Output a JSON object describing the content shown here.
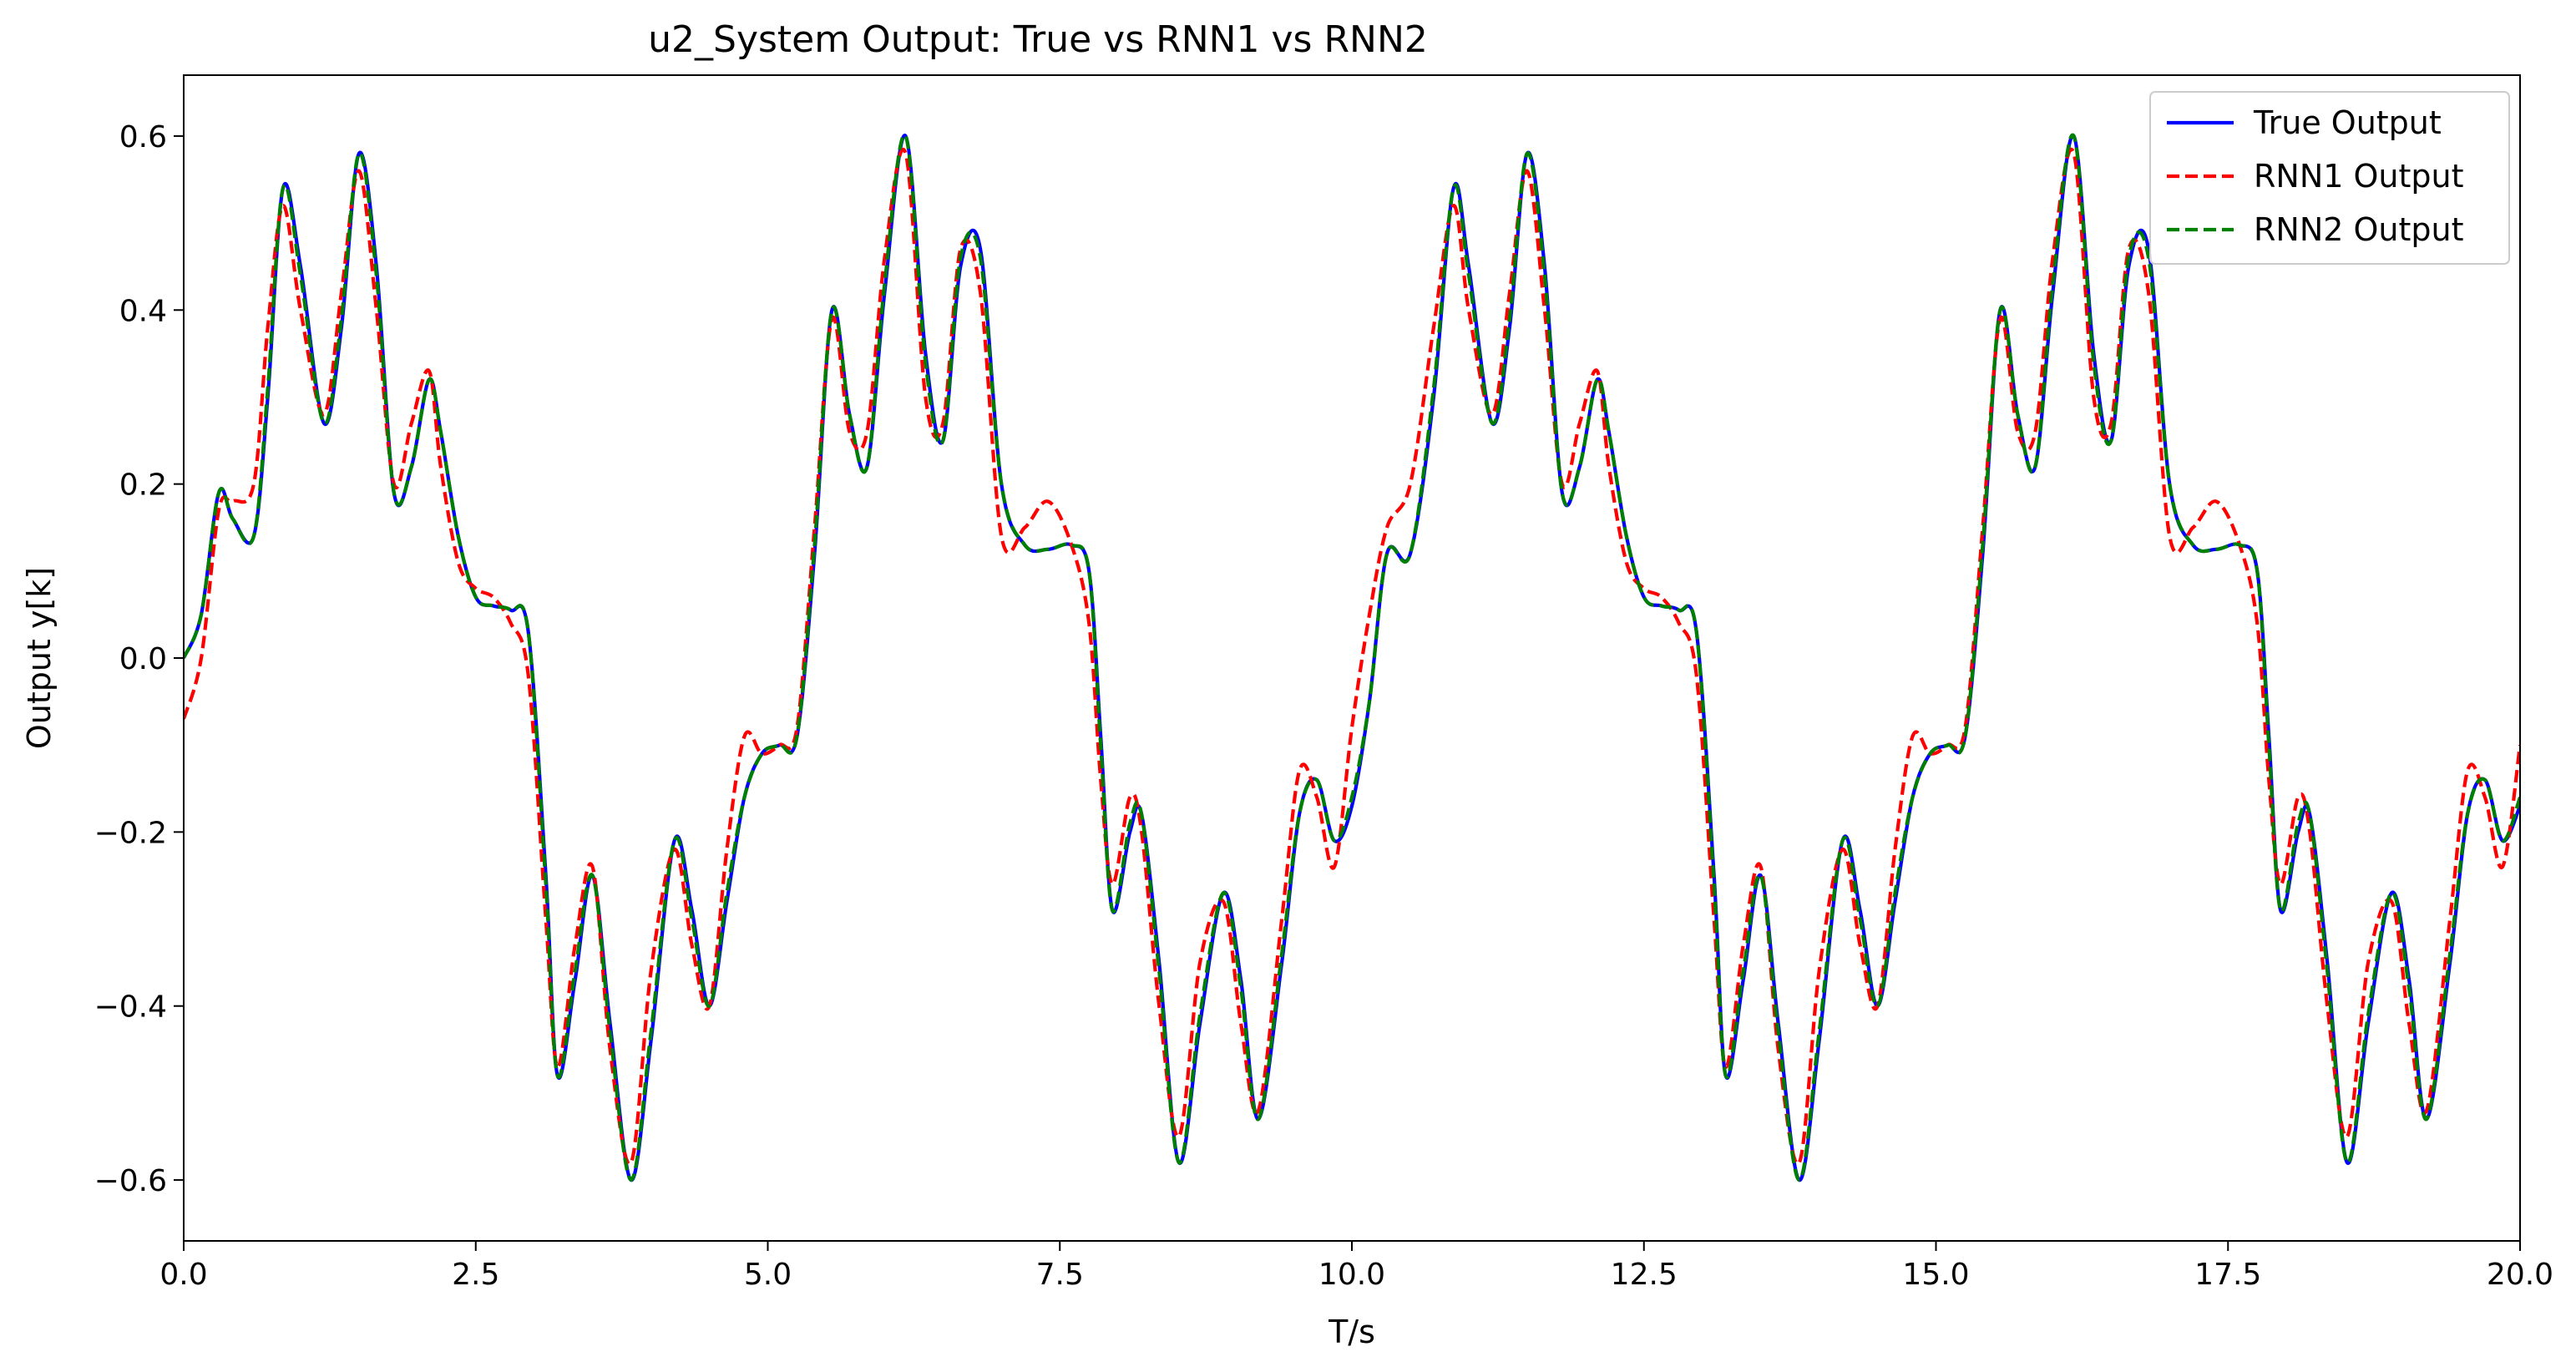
{
  "chart_data": {
    "type": "line",
    "title": "u2_System Output: True vs RNN1 vs RNN2",
    "xlabel": "T/s",
    "ylabel": "Output y[k]",
    "xlim": [
      0,
      20
    ],
    "ylim": [
      -0.67,
      0.67
    ],
    "xticks": [
      0,
      2.5,
      5,
      7.5,
      10,
      12.5,
      15,
      17.5,
      20
    ],
    "xtick_labels": [
      "0.0",
      "2.5",
      "5.0",
      "7.5",
      "10.0",
      "12.5",
      "15.0",
      "17.5",
      "20.0"
    ],
    "yticks": [
      -0.6,
      -0.4,
      -0.2,
      0.0,
      0.2,
      0.4,
      0.6
    ],
    "ytick_labels": [
      "−0.6",
      "−0.4",
      "−0.2",
      "0.0",
      "0.2",
      "0.4",
      "0.6"
    ],
    "grid": false,
    "legend_position": "top-right",
    "x": [
      0.0,
      0.15,
      0.3,
      0.42,
      0.6,
      0.72,
      0.85,
      1.0,
      1.2,
      1.35,
      1.5,
      1.65,
      1.8,
      1.95,
      2.1,
      2.2,
      2.35,
      2.5,
      2.65,
      2.8,
      2.95,
      3.1,
      3.2,
      3.35,
      3.5,
      3.65,
      3.83,
      4.0,
      4.2,
      4.35,
      4.5,
      4.65,
      4.8,
      4.95,
      5.1,
      5.25,
      5.4,
      5.55,
      5.7,
      5.85,
      6.0,
      6.18,
      6.35,
      6.5,
      6.65,
      6.82,
      7.0,
      7.2,
      7.4,
      7.6,
      7.75,
      7.85,
      7.95,
      8.1,
      8.2,
      8.35,
      8.52,
      8.7,
      8.9,
      9.05,
      9.2,
      9.4,
      9.55,
      9.7,
      9.85,
      10.0,
      10.15,
      10.3,
      10.5,
      10.7,
      10.87,
      11.0,
      11.2,
      11.35,
      11.5,
      11.65,
      11.8,
      11.95,
      12.1,
      12.2,
      12.35,
      12.5,
      12.65,
      12.8,
      12.95,
      13.1,
      13.2,
      13.35,
      13.5,
      13.65,
      13.83,
      14.0,
      14.2,
      14.35,
      14.5,
      14.65,
      14.8,
      14.95,
      15.1,
      15.25,
      15.4,
      15.55,
      15.7,
      15.85,
      16.0,
      16.18,
      16.35,
      16.5,
      16.65,
      16.82,
      17.0,
      17.2,
      17.4,
      17.6,
      17.75,
      17.85,
      17.95,
      18.1,
      18.2,
      18.35,
      18.52,
      18.7,
      18.9,
      19.05,
      19.2,
      19.4,
      19.55,
      19.7,
      19.85,
      20.0
    ],
    "series": [
      {
        "name": "True Output",
        "color": "#0000ff",
        "dash": "solid",
        "values": [
          0.0,
          0.05,
          0.19,
          0.16,
          0.14,
          0.3,
          0.54,
          0.45,
          0.27,
          0.38,
          0.58,
          0.45,
          0.19,
          0.22,
          0.32,
          0.26,
          0.14,
          0.07,
          0.06,
          0.055,
          0.03,
          -0.25,
          -0.48,
          -0.37,
          -0.25,
          -0.42,
          -0.6,
          -0.44,
          -0.21,
          -0.29,
          -0.4,
          -0.28,
          -0.16,
          -0.11,
          -0.1,
          -0.09,
          0.12,
          0.4,
          0.28,
          0.22,
          0.42,
          0.6,
          0.35,
          0.25,
          0.45,
          0.47,
          0.2,
          0.13,
          0.125,
          0.13,
          0.1,
          -0.09,
          -0.29,
          -0.2,
          -0.18,
          -0.35,
          -0.58,
          -0.42,
          -0.27,
          -0.37,
          -0.53,
          -0.35,
          -0.18,
          -0.14,
          -0.21,
          -0.17,
          -0.05,
          0.12,
          0.12,
          0.3,
          0.54,
          0.45,
          0.27,
          0.38,
          0.58,
          0.45,
          0.19,
          0.22,
          0.32,
          0.26,
          0.14,
          0.07,
          0.06,
          0.055,
          0.03,
          -0.25,
          -0.48,
          -0.37,
          -0.25,
          -0.42,
          -0.6,
          -0.44,
          -0.21,
          -0.29,
          -0.4,
          -0.28,
          -0.16,
          -0.11,
          -0.1,
          -0.09,
          0.12,
          0.4,
          0.28,
          0.22,
          0.42,
          0.6,
          0.35,
          0.25,
          0.45,
          0.47,
          0.2,
          0.13,
          0.125,
          0.13,
          0.1,
          -0.09,
          -0.29,
          -0.2,
          -0.18,
          -0.35,
          -0.58,
          -0.42,
          -0.27,
          -0.37,
          -0.53,
          -0.35,
          -0.18,
          -0.14,
          -0.21,
          -0.17
        ]
      },
      {
        "name": "RNN1 Output",
        "color": "#ff0000",
        "dash": "dashed",
        "values": [
          -0.07,
          0.0,
          0.17,
          0.18,
          0.2,
          0.38,
          0.52,
          0.4,
          0.28,
          0.42,
          0.56,
          0.4,
          0.2,
          0.27,
          0.33,
          0.22,
          0.11,
          0.08,
          0.07,
          0.04,
          -0.02,
          -0.3,
          -0.47,
          -0.33,
          -0.24,
          -0.45,
          -0.58,
          -0.36,
          -0.22,
          -0.33,
          -0.4,
          -0.22,
          -0.09,
          -0.11,
          -0.1,
          -0.08,
          0.15,
          0.39,
          0.26,
          0.26,
          0.46,
          0.58,
          0.3,
          0.27,
          0.47,
          0.42,
          0.14,
          0.15,
          0.18,
          0.13,
          0.04,
          -0.14,
          -0.26,
          -0.16,
          -0.2,
          -0.4,
          -0.55,
          -0.35,
          -0.28,
          -0.42,
          -0.52,
          -0.3,
          -0.13,
          -0.16,
          -0.24,
          -0.08,
          0.05,
          0.15,
          0.2,
          0.38,
          0.52,
          0.4,
          0.28,
          0.42,
          0.56,
          0.4,
          0.2,
          0.27,
          0.33,
          0.22,
          0.11,
          0.08,
          0.07,
          0.04,
          -0.02,
          -0.3,
          -0.47,
          -0.33,
          -0.24,
          -0.45,
          -0.58,
          -0.36,
          -0.22,
          -0.33,
          -0.4,
          -0.22,
          -0.09,
          -0.11,
          -0.1,
          -0.08,
          0.15,
          0.39,
          0.26,
          0.26,
          0.46,
          0.58,
          0.3,
          0.27,
          0.47,
          0.42,
          0.14,
          0.15,
          0.18,
          0.13,
          0.04,
          -0.14,
          -0.26,
          -0.16,
          -0.2,
          -0.4,
          -0.55,
          -0.35,
          -0.28,
          -0.42,
          -0.52,
          -0.3,
          -0.13,
          -0.16,
          -0.24,
          -0.1
        ]
      },
      {
        "name": "RNN2 Output",
        "color": "#008000",
        "dash": "dashed",
        "values": [
          0.0,
          0.05,
          0.19,
          0.16,
          0.14,
          0.31,
          0.54,
          0.44,
          0.27,
          0.39,
          0.58,
          0.44,
          0.19,
          0.22,
          0.32,
          0.26,
          0.14,
          0.07,
          0.06,
          0.055,
          0.03,
          -0.26,
          -0.48,
          -0.36,
          -0.25,
          -0.43,
          -0.6,
          -0.43,
          -0.21,
          -0.3,
          -0.4,
          -0.27,
          -0.16,
          -0.11,
          -0.1,
          -0.09,
          0.13,
          0.4,
          0.28,
          0.22,
          0.43,
          0.6,
          0.34,
          0.25,
          0.46,
          0.46,
          0.2,
          0.13,
          0.125,
          0.13,
          0.1,
          -0.1,
          -0.29,
          -0.19,
          -0.18,
          -0.36,
          -0.58,
          -0.41,
          -0.27,
          -0.38,
          -0.53,
          -0.34,
          -0.18,
          -0.14,
          -0.21,
          -0.16,
          -0.05,
          0.12,
          0.12,
          0.31,
          0.54,
          0.44,
          0.27,
          0.39,
          0.58,
          0.44,
          0.19,
          0.22,
          0.32,
          0.26,
          0.14,
          0.07,
          0.06,
          0.055,
          0.03,
          -0.26,
          -0.48,
          -0.36,
          -0.25,
          -0.43,
          -0.6,
          -0.43,
          -0.21,
          -0.3,
          -0.4,
          -0.27,
          -0.16,
          -0.11,
          -0.1,
          -0.09,
          0.13,
          0.4,
          0.28,
          0.22,
          0.43,
          0.6,
          0.34,
          0.25,
          0.46,
          0.46,
          0.2,
          0.13,
          0.125,
          0.13,
          0.1,
          -0.1,
          -0.29,
          -0.19,
          -0.18,
          -0.36,
          -0.58,
          -0.41,
          -0.27,
          -0.38,
          -0.53,
          -0.34,
          -0.18,
          -0.14,
          -0.21,
          -0.16
        ]
      }
    ]
  }
}
